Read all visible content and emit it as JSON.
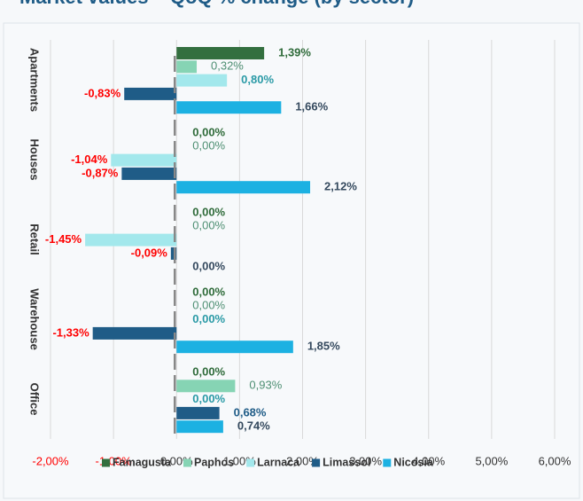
{
  "chart_data": {
    "type": "bar",
    "orientation": "horizontal",
    "title": "Market values – QoQ % change (by sector)",
    "categories": [
      "Apartments",
      "Houses",
      "Retail",
      "Warehouse",
      "Office"
    ],
    "series": [
      {
        "name": "Famagusta",
        "color": "#336f3f",
        "label_color": "#2f6b3a",
        "label_bold": true,
        "values": [
          1.39,
          0.0,
          0.0,
          0.0,
          0.0
        ],
        "value_labels": [
          "1,39%",
          "0,00%",
          "0,00%",
          "0,00%",
          "0,00%"
        ]
      },
      {
        "name": "Paphos",
        "color": "#86d4b4",
        "label_color": "#4e8f73",
        "label_bold": false,
        "values": [
          0.32,
          0.0,
          0.0,
          0.0,
          0.93
        ],
        "value_labels": [
          "0,32%",
          "0,00%",
          "0,00%",
          "0,00%",
          "0,93%"
        ]
      },
      {
        "name": "Larnaca",
        "color": "#a3e8ec",
        "label_color": "#2a9aa6",
        "label_bold": true,
        "values": [
          0.8,
          -1.04,
          -1.45,
          0.0,
          0.0
        ],
        "value_labels": [
          "0,80%",
          "-1,04%",
          "-1,45%",
          "0,00%",
          "0,00%"
        ]
      },
      {
        "name": "Limassol",
        "color": "#1f5c87",
        "label_color": "#1f5c87",
        "label_bold": true,
        "values": [
          -0.83,
          -0.87,
          -0.09,
          -1.33,
          0.68
        ],
        "value_labels": [
          "-0,83%",
          "-0,87%",
          "-0,09%",
          "-1,33%",
          "0,68%"
        ]
      },
      {
        "name": "Nicosia",
        "color": "#1cb1e2",
        "label_color": "#34495e",
        "label_bold": true,
        "values": [
          1.66,
          2.12,
          0.0,
          1.85,
          0.74
        ],
        "value_labels": [
          "1,66%",
          "2,12%",
          "0,00%",
          "1,85%",
          "0,74%"
        ]
      }
    ],
    "negative_color": "#ff0000",
    "xlim": [
      -2,
      6
    ],
    "xticks": [
      {
        "value": -2,
        "label": "-2,00%"
      },
      {
        "value": -1,
        "label": "-1,00%"
      },
      {
        "value": 0,
        "label": "0,00%"
      },
      {
        "value": 1,
        "label": "1,00%"
      },
      {
        "value": 2,
        "label": "2,00%"
      },
      {
        "value": 3,
        "label": "3,00%"
      },
      {
        "value": 4,
        "label": "4,00%"
      },
      {
        "value": 5,
        "label": "5,00%"
      },
      {
        "value": 6,
        "label": "6,00%"
      }
    ],
    "grid": true,
    "legend": "bottom"
  }
}
